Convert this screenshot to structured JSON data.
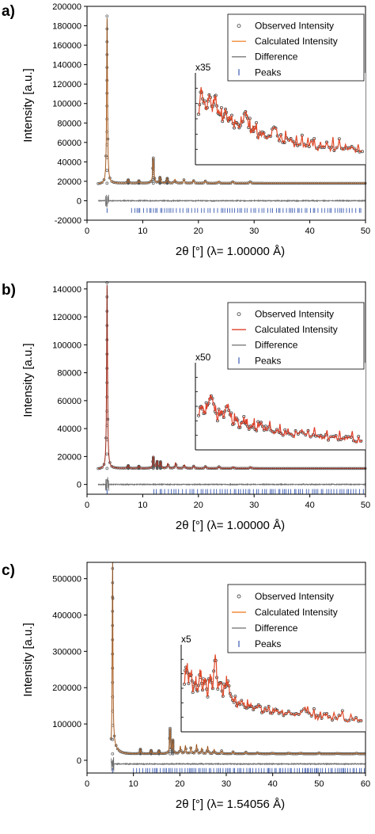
{
  "colors": {
    "observed": "#555555",
    "calculated_ab": "#f08c3c",
    "calculated_b": "#e0402a",
    "difference": "#6e6e6e",
    "peaks": "#3a5bb0",
    "axis": "#000000"
  },
  "chart_data": [
    {
      "type": "line",
      "panel_label": "a)",
      "xlabel": "2θ [°] (λ= 1.00000 Å)",
      "ylabel": "Intensity [a.u.]",
      "xlim": [
        0,
        50
      ],
      "ylim": [
        -20000,
        200000
      ],
      "x_ticks": [
        0,
        10,
        20,
        30,
        40,
        50
      ],
      "y_ticks": [
        -20000,
        0,
        20000,
        40000,
        60000,
        80000,
        100000,
        120000,
        140000,
        160000,
        180000,
        200000
      ],
      "y_tick_labels": [
        "-20000",
        "0",
        "20000",
        "40000",
        "60000",
        "80000",
        "100000",
        "120000",
        "140000",
        "160000",
        "180000",
        "200000"
      ],
      "legend": [
        "Observed Intensity",
        "Calculated Intensity",
        "Difference",
        "Peaks"
      ],
      "inset_scale": "x35",
      "baseline": 18000,
      "difference_offset": 0,
      "peaks_level": -10000,
      "peaks_start": 8,
      "main_peaks": [
        [
          3.6,
          172000
        ],
        [
          7.4,
          3500
        ],
        [
          9.3,
          2500
        ],
        [
          11.9,
          26000
        ],
        [
          13.1,
          6000
        ],
        [
          14.4,
          5000
        ],
        [
          15.8,
          4000
        ],
        [
          17.4,
          3500
        ],
        [
          19.1,
          3000
        ],
        [
          21.2,
          2500
        ],
        [
          23.6,
          2000
        ],
        [
          26.2,
          1800
        ],
        [
          29.3,
          1600
        ]
      ],
      "inset_points": [
        [
          22.0,
          0.55
        ],
        [
          22.4,
          0.88
        ],
        [
          22.8,
          0.7
        ],
        [
          23.3,
          0.6
        ],
        [
          23.7,
          0.82
        ],
        [
          24.2,
          0.62
        ],
        [
          24.6,
          0.78
        ],
        [
          25.0,
          0.6
        ],
        [
          25.5,
          0.55
        ],
        [
          25.9,
          0.48
        ],
        [
          26.3,
          0.62
        ],
        [
          26.7,
          0.45
        ],
        [
          27.1,
          0.52
        ],
        [
          27.6,
          0.42
        ],
        [
          28.1,
          0.46
        ],
        [
          28.6,
          0.4
        ],
        [
          29.1,
          0.48
        ],
        [
          29.6,
          0.6
        ],
        [
          30.0,
          0.42
        ],
        [
          30.5,
          0.35
        ],
        [
          31.0,
          0.38
        ],
        [
          31.6,
          0.3
        ],
        [
          32.2,
          0.34
        ],
        [
          32.8,
          0.28
        ],
        [
          33.5,
          0.3
        ],
        [
          34.2,
          0.42
        ],
        [
          34.9,
          0.27
        ],
        [
          35.6,
          0.24
        ],
        [
          36.4,
          0.27
        ],
        [
          37.3,
          0.2
        ],
        [
          38.2,
          0.23
        ],
        [
          39.1,
          0.18
        ],
        [
          40.1,
          0.22
        ],
        [
          41.1,
          0.16
        ],
        [
          42.1,
          0.19
        ],
        [
          43.1,
          0.15
        ],
        [
          44.1,
          0.17
        ],
        [
          45.1,
          0.14
        ],
        [
          46.1,
          0.15
        ],
        [
          47.1,
          0.13
        ],
        [
          48.2,
          0.12
        ]
      ]
    },
    {
      "type": "line",
      "panel_label": "b)",
      "xlabel": "2θ [°] (λ= 1.00000 Å)",
      "ylabel": "Intensity [a.u.]",
      "xlim": [
        0,
        50
      ],
      "ylim": [
        -7000,
        145000
      ],
      "x_ticks": [
        0,
        10,
        20,
        30,
        40,
        50
      ],
      "y_ticks": [
        0,
        20000,
        40000,
        60000,
        80000,
        100000,
        120000,
        140000
      ],
      "y_tick_labels": [
        "0",
        "20000",
        "40000",
        "60000",
        "80000",
        "100000",
        "120000",
        "140000"
      ],
      "legend": [
        "Observed Intensity",
        "Calculated Intensity",
        "Difference",
        "Peaks"
      ],
      "inset_scale": "x50",
      "baseline": 11500,
      "difference_offset": 0,
      "peaks_level": -5000,
      "peaks_start": 12,
      "main_peaks": [
        [
          3.6,
          133000
        ],
        [
          7.4,
          2000
        ],
        [
          9.3,
          1500
        ],
        [
          11.9,
          8000
        ],
        [
          12.6,
          5000
        ],
        [
          13.2,
          4500
        ],
        [
          14.5,
          3500
        ],
        [
          15.9,
          4000
        ],
        [
          17.5,
          2500
        ],
        [
          19.2,
          1800
        ],
        [
          21.3,
          1500
        ],
        [
          23.7,
          1200
        ],
        [
          26.3,
          1100
        ],
        [
          29.4,
          1000
        ]
      ],
      "inset_points": [
        [
          22.0,
          0.42
        ],
        [
          22.5,
          0.5
        ],
        [
          23.0,
          0.4
        ],
        [
          23.5,
          0.55
        ],
        [
          24.0,
          0.65
        ],
        [
          24.5,
          0.48
        ],
        [
          25.0,
          0.35
        ],
        [
          25.5,
          0.45
        ],
        [
          26.0,
          0.38
        ],
        [
          26.5,
          0.52
        ],
        [
          27.0,
          0.4
        ],
        [
          27.5,
          0.28
        ],
        [
          28.0,
          0.36
        ],
        [
          28.5,
          0.25
        ],
        [
          29.0,
          0.3
        ],
        [
          29.5,
          0.32
        ],
        [
          30.0,
          0.24
        ],
        [
          30.6,
          0.28
        ],
        [
          31.2,
          0.22
        ],
        [
          31.8,
          0.3
        ],
        [
          32.4,
          0.2
        ],
        [
          33.0,
          0.24
        ],
        [
          33.8,
          0.18
        ],
        [
          34.6,
          0.22
        ],
        [
          35.4,
          0.16
        ],
        [
          36.2,
          0.2
        ],
        [
          37.0,
          0.14
        ],
        [
          38.0,
          0.17
        ],
        [
          39.0,
          0.13
        ],
        [
          40.0,
          0.15
        ],
        [
          41.0,
          0.12
        ],
        [
          42.0,
          0.13
        ],
        [
          43.0,
          0.1
        ],
        [
          44.0,
          0.12
        ],
        [
          45.0,
          0.09
        ],
        [
          46.0,
          0.1
        ],
        [
          47.0,
          0.08
        ],
        [
          48.0,
          0.08
        ]
      ]
    },
    {
      "type": "line",
      "panel_label": "c)",
      "xlabel": "2θ [°] (λ= 1.54056 Å)",
      "ylabel": "Intensity [a.u.]",
      "xlim": [
        0,
        60
      ],
      "ylim": [
        -35000,
        545000
      ],
      "x_ticks": [
        0,
        10,
        20,
        30,
        40,
        50,
        60
      ],
      "y_ticks": [
        0,
        100000,
        200000,
        300000,
        400000,
        500000
      ],
      "y_tick_labels": [
        "0",
        "100000",
        "200000",
        "300000",
        "400000",
        "500000"
      ],
      "legend": [
        "Observed Intensity",
        "Calculated Intensity",
        "Difference",
        "Peaks"
      ],
      "inset_scale": "x5",
      "baseline": 18000,
      "difference_offset": -10000,
      "peaks_level": -28000,
      "peaks_start": 10,
      "main_peaks": [
        [
          5.5,
          510000
        ],
        [
          11.5,
          12000
        ],
        [
          13.8,
          9000
        ],
        [
          15.5,
          8000
        ],
        [
          17.9,
          70000
        ],
        [
          18.5,
          35000
        ],
        [
          20.1,
          20000
        ],
        [
          21.2,
          22000
        ],
        [
          22.4,
          18000
        ],
        [
          23.6,
          25000
        ],
        [
          24.7,
          15000
        ],
        [
          26.0,
          20000
        ],
        [
          27.4,
          12000
        ],
        [
          29.0,
          8000
        ],
        [
          31.5,
          6000
        ],
        [
          34.2,
          5000
        ],
        [
          36.8,
          4000
        ],
        [
          40.0,
          3500
        ],
        [
          43.5,
          3000
        ],
        [
          46.0,
          3500
        ],
        [
          50.0,
          2500
        ],
        [
          54.0,
          2000
        ],
        [
          58.0,
          1800
        ]
      ],
      "inset_points": [
        [
          17.5,
          0.55
        ],
        [
          18.0,
          0.8
        ],
        [
          18.5,
          0.6
        ],
        [
          19.0,
          0.72
        ],
        [
          19.5,
          0.48
        ],
        [
          20.0,
          0.62
        ],
        [
          20.6,
          0.45
        ],
        [
          21.2,
          0.72
        ],
        [
          21.8,
          0.5
        ],
        [
          22.4,
          0.62
        ],
        [
          23.0,
          0.42
        ],
        [
          23.6,
          0.7
        ],
        [
          24.2,
          0.48
        ],
        [
          24.8,
          0.92
        ],
        [
          25.4,
          0.5
        ],
        [
          26.0,
          0.6
        ],
        [
          26.6,
          0.42
        ],
        [
          27.2,
          0.55
        ],
        [
          27.8,
          0.58
        ],
        [
          28.4,
          0.4
        ],
        [
          29.2,
          0.36
        ],
        [
          30.0,
          0.3
        ],
        [
          31.0,
          0.34
        ],
        [
          32.0,
          0.27
        ],
        [
          33.0,
          0.3
        ],
        [
          34.0,
          0.25
        ],
        [
          35.0,
          0.28
        ],
        [
          36.0,
          0.22
        ],
        [
          37.0,
          0.25
        ],
        [
          38.0,
          0.2
        ],
        [
          39.0,
          0.22
        ],
        [
          40.0,
          0.18
        ],
        [
          41.5,
          0.2
        ],
        [
          43.0,
          0.16
        ],
        [
          44.5,
          0.17
        ],
        [
          46.0,
          0.24
        ],
        [
          47.5,
          0.15
        ],
        [
          49.0,
          0.14
        ],
        [
          50.5,
          0.16
        ],
        [
          52.0,
          0.13
        ],
        [
          54.0,
          0.14
        ],
        [
          56.0,
          0.11
        ],
        [
          58.0,
          0.11
        ],
        [
          59.5,
          0.1
        ]
      ]
    }
  ]
}
